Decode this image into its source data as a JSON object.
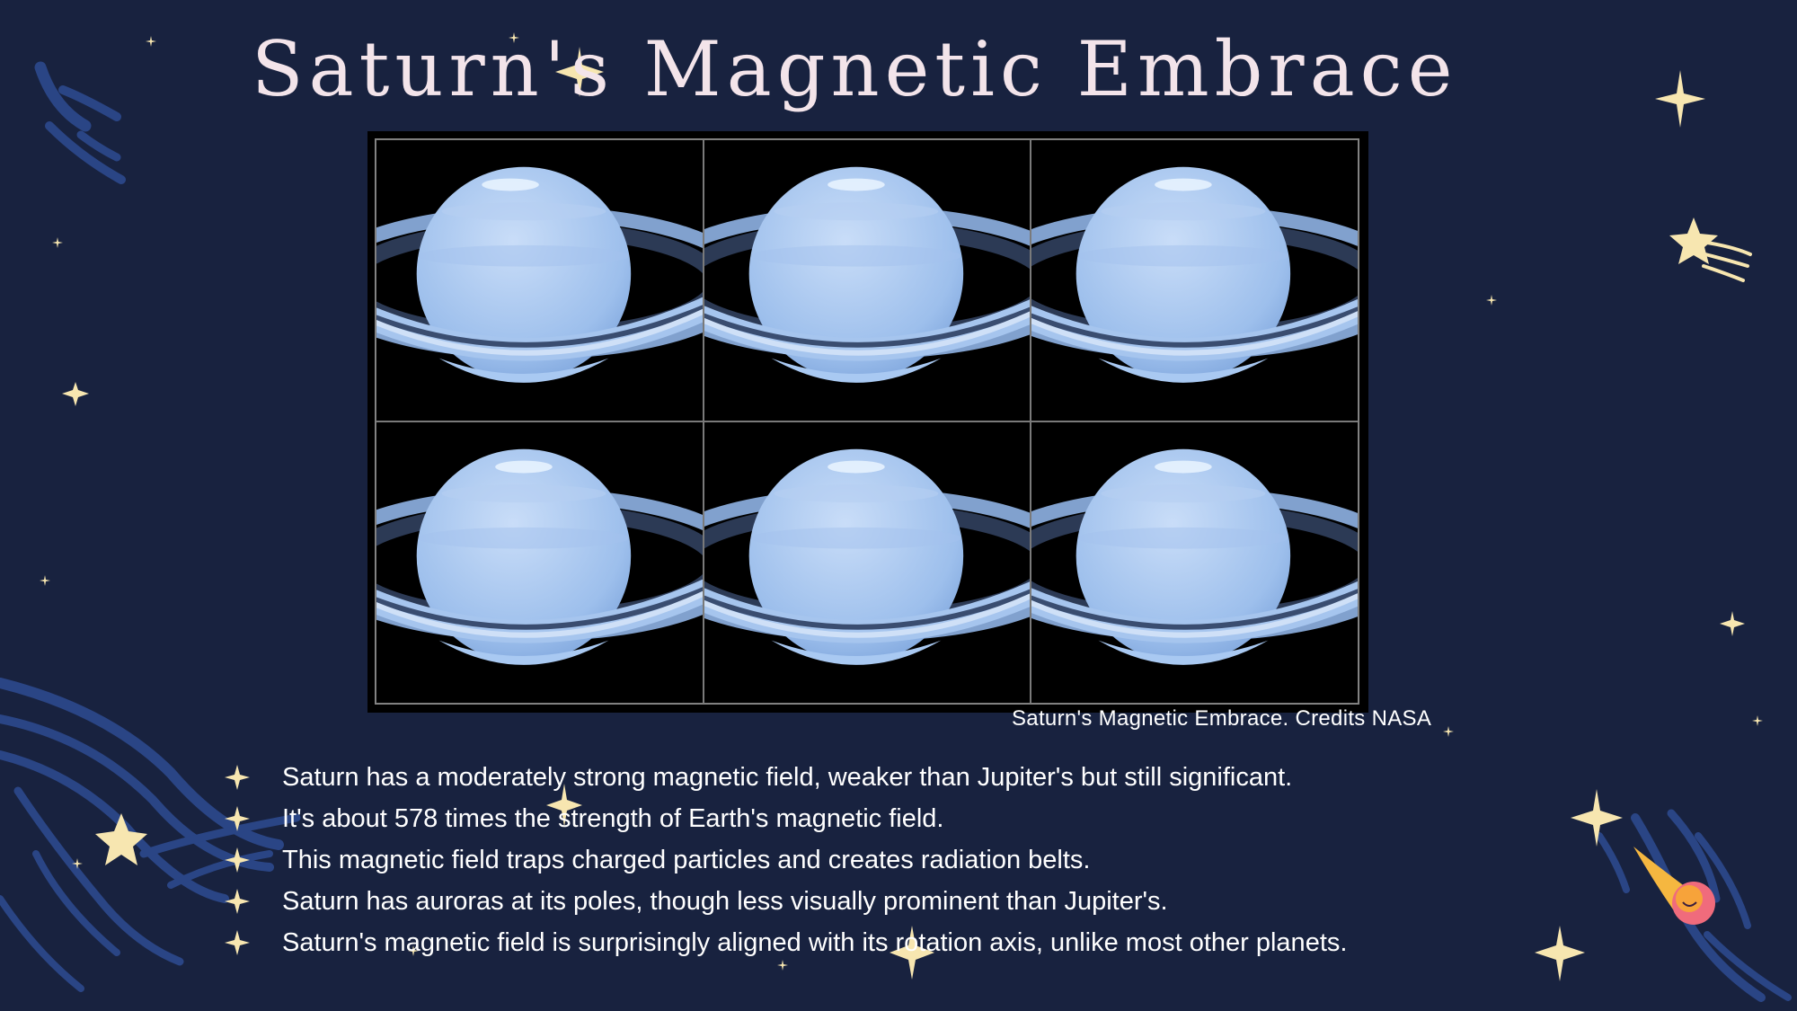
{
  "slide": {
    "title": "Saturn's Magnetic Embrace",
    "image_caption": "Saturn's Magnetic Embrace. Credits NASA",
    "image_panels": [
      "saturn-aurora-panel-1",
      "saturn-aurora-panel-2",
      "saturn-aurora-panel-3",
      "saturn-aurora-panel-4",
      "saturn-aurora-panel-5",
      "saturn-aurora-panel-6"
    ],
    "bullet_icon": "sparkle-icon",
    "bullets": [
      "Saturn has a moderately strong magnetic field, weaker than Jupiter's but still significant.",
      "It's about 578 times the strength of Earth's magnetic field.",
      "This magnetic field traps charged particles and creates radiation belts.",
      "Saturn has auroras at its poles, though less visually prominent than Jupiter's.",
      "Saturn's magnetic field is surprisingly aligned with its rotation axis, unlike most other planets."
    ]
  },
  "colors": {
    "background": "#18223f",
    "title": "#f3e4ea",
    "star": "#f7e6b0",
    "swirl": "#2a4585",
    "planet": "#a9c9f2"
  },
  "decorations": [
    "star-icon",
    "shooting-star-icon",
    "comet-icon",
    "swirl-decoration"
  ]
}
